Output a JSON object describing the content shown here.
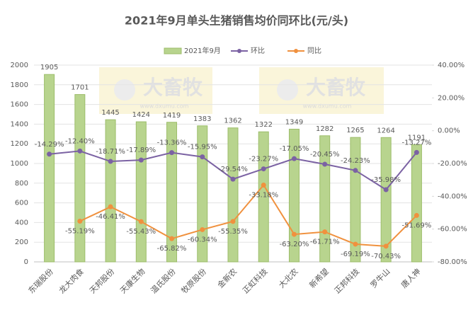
{
  "chart_data": {
    "type": "bar",
    "title": "2021年9月单头生猪销售均价同环比(元/头)",
    "watermark": "大畜牧",
    "watermark_url": "www.dxumu.com",
    "categories": [
      "东瑞股份",
      "龙大肉食",
      "天邦股份",
      "天康生物",
      "温氏股份",
      "牧原股份",
      "金新农",
      "正虹科技",
      "大北农",
      "新希望",
      "正邦科技",
      "罗牛山",
      "唐人神"
    ],
    "series": [
      {
        "name": "2021年9月",
        "type": "bar",
        "color": "#b8d48e",
        "values": [
          1905,
          1701,
          1445,
          1424,
          1419,
          1383,
          1362,
          1322,
          1349,
          1282,
          1265,
          1264,
          1191
        ]
      },
      {
        "name": "环比",
        "type": "line",
        "axis": "y2",
        "color": "#7b62a3",
        "values": [
          -14.29,
          -12.4,
          -18.71,
          -17.89,
          -13.36,
          -15.95,
          -29.54,
          -23.27,
          -17.05,
          -20.45,
          -24.23,
          -35.98,
          -13.27
        ],
        "value_labels": [
          "-14.29%",
          "-12.40%",
          "-18.71%",
          "-17.89%",
          "-13.36%",
          "-15.95%",
          "-29.54%",
          "-23.27%",
          "-17.05%",
          "-20.45%",
          "-24.23%",
          "-35.98%",
          "-13.27%"
        ]
      },
      {
        "name": "同比",
        "type": "line",
        "axis": "y2",
        "color": "#f0913e",
        "values": [
          null,
          -55.19,
          -46.41,
          -55.43,
          -65.82,
          -60.34,
          -55.35,
          -33.18,
          -63.2,
          -61.71,
          -69.19,
          -70.43,
          -51.69
        ],
        "value_labels": [
          null,
          "-55.19%",
          "-46.41%",
          "-55.43%",
          "-65.82%",
          "-60.34%",
          "-55.35%",
          "-33.18%",
          "-63.20%",
          "-61.71%",
          "-69.19%",
          "-70.43%",
          "-51.69%"
        ]
      }
    ],
    "ylim": [
      0,
      2000
    ],
    "yticks": [
      0,
      200,
      400,
      600,
      800,
      1000,
      1200,
      1400,
      1600,
      1800,
      2000
    ],
    "y2lim": [
      -80,
      40
    ],
    "y2ticks": [
      {
        "value": -80,
        "label": "-80.00%"
      },
      {
        "value": -60,
        "label": "-60.00%"
      },
      {
        "value": -40,
        "label": "-40.00%"
      },
      {
        "value": -20,
        "label": "-20.00%"
      },
      {
        "value": 0,
        "label": "0.00%"
      },
      {
        "value": 20,
        "label": "20.00%"
      },
      {
        "value": 40,
        "label": "40.00%"
      }
    ],
    "grid": true,
    "legend": "top"
  }
}
